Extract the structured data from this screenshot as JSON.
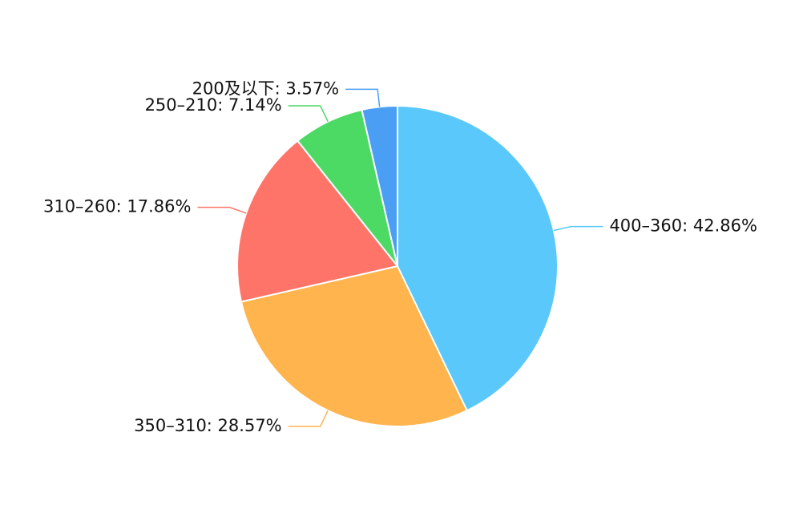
{
  "chart_data": {
    "type": "pie",
    "categories": [
      "400–360",
      "350–310",
      "310–260",
      "250–210",
      "200及以下"
    ],
    "labels": [
      "400–360: 42.86%",
      "350–310: 28.57%",
      "310–260: 17.86%",
      "250–210: 7.14%",
      "200及以下: 3.57%"
    ],
    "values": [
      42.86,
      28.57,
      17.86,
      7.14,
      3.57
    ],
    "colors": [
      "#5ac8fa",
      "#ffb44d",
      "#ff7468",
      "#4cd964",
      "#4a9ff5"
    ]
  }
}
